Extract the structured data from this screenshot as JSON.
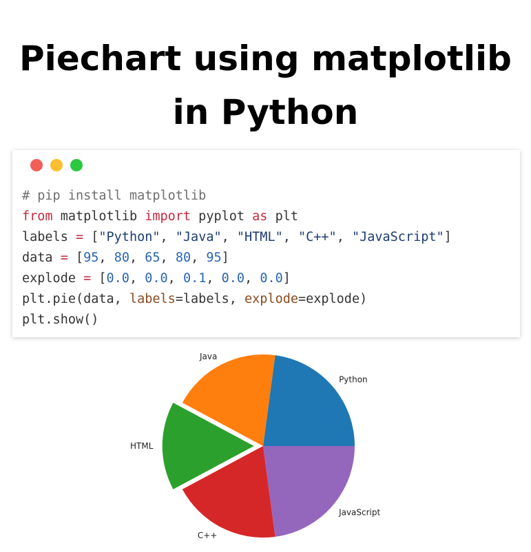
{
  "title": {
    "line1": "Piechart using matplotlib",
    "line2": "in Python"
  },
  "window": {
    "dots": [
      {
        "name": "close-dot",
        "color": "#f25f58"
      },
      {
        "name": "minimize-dot",
        "color": "#fbbe2e"
      },
      {
        "name": "maximize-dot",
        "color": "#2bc840"
      }
    ]
  },
  "code": {
    "comment": "# pip install matplotlib",
    "line2": {
      "kw_from": "from",
      "module": " matplotlib ",
      "kw_import": "import",
      "name": " pyplot ",
      "kw_as": "as",
      "alias": " plt"
    },
    "line3": {
      "var": "labels ",
      "op": "=",
      "open": " [",
      "items": [
        "\"Python\"",
        "\"Java\"",
        "\"HTML\"",
        "\"C++\"",
        "\"JavaScript\""
      ],
      "close": "]"
    },
    "line4": {
      "var": "data ",
      "op": "=",
      "open": " [",
      "items": [
        "95",
        "80",
        "65",
        "80",
        "95"
      ],
      "close": "]"
    },
    "line5": {
      "var": "explode ",
      "op": "=",
      "open": " [",
      "items": [
        "0.0",
        "0.0",
        "0.1",
        "0.0",
        "0.0"
      ],
      "close": "]"
    },
    "line6": {
      "call": "plt.pie(data, ",
      "arg1": "labels",
      "eq1": "=labels, ",
      "arg2": "explode",
      "eq2": "=explode)"
    },
    "line7": "plt.show()"
  },
  "chart_data": {
    "type": "pie",
    "categories": [
      "Python",
      "Java",
      "HTML",
      "C++",
      "JavaScript"
    ],
    "values": [
      95,
      80,
      65,
      80,
      95
    ],
    "explode": [
      0.0,
      0.0,
      0.1,
      0.0,
      0.0
    ],
    "colors": [
      "#1f77b4",
      "#ff7f0e",
      "#2ca02c",
      "#d62728",
      "#9467bd"
    ],
    "start_angle": 0,
    "direction": "counterclockwise"
  }
}
